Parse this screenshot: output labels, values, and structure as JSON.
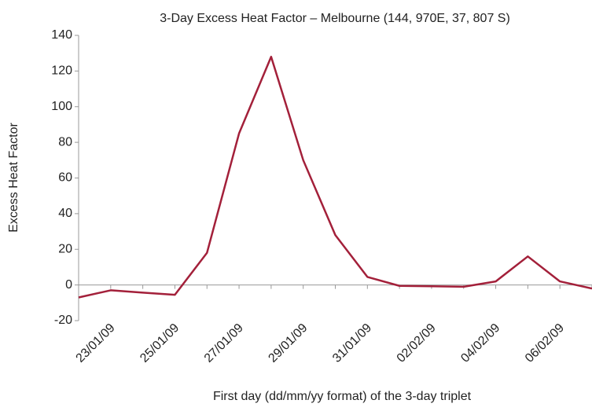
{
  "chart_data": {
    "type": "line",
    "title": "3-Day Excess Heat Factor – Melbourne (144, 970E, 37, 807 S)",
    "x_label": "First day (dd/mm/yy format) of the 3-day triplet",
    "y_label": "Excess Heat Factor",
    "categories": [
      null,
      "23/01/09",
      null,
      "25/01/09",
      null,
      "27/01/09",
      null,
      "29/01/09",
      null,
      "31/01/09",
      null,
      "02/02/09",
      null,
      "04/02/09",
      null,
      "06/02/09",
      null
    ],
    "series": [
      {
        "name": "Excess Heat Factor",
        "color": "#a3203a",
        "values": [
          -7,
          -3,
          -4.3,
          -5.5,
          18,
          85,
          128,
          70,
          28,
          4.5,
          -0.5,
          -0.7,
          -1,
          2,
          16,
          2,
          -2
        ]
      }
    ],
    "ylim": [
      -20,
      140
    ],
    "yticks": [
      -20,
      0,
      20,
      40,
      60,
      80,
      100,
      120,
      140
    ],
    "grid": false
  }
}
